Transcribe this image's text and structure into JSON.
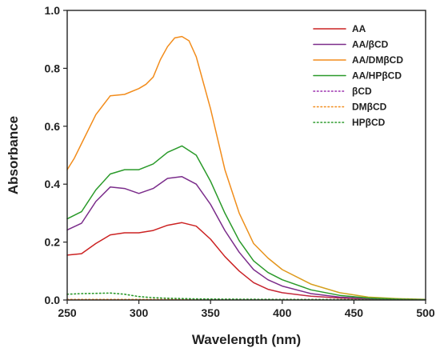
{
  "chart_data": {
    "type": "line",
    "title": "",
    "xlabel": "Wavelength (nm)",
    "ylabel": "Absorbance",
    "xlim": [
      250,
      500
    ],
    "ylim": [
      0.0,
      1.0
    ],
    "xticks": [
      250,
      300,
      350,
      400,
      450,
      500
    ],
    "yticks": [
      0.0,
      0.2,
      0.4,
      0.6,
      0.8,
      1.0
    ],
    "xtick_labels": [
      "250",
      "300",
      "350",
      "400",
      "450",
      "500"
    ],
    "ytick_labels": [
      "0.0",
      "0.2",
      "0.4",
      "0.6",
      "0.8",
      "1.0"
    ],
    "grid": false,
    "legend_position": "top-right",
    "series": [
      {
        "name": "AA",
        "color": "#cc2222",
        "color_end": "#b0306a",
        "dash": "solid",
        "x": [
          250,
          260,
          270,
          280,
          290,
          300,
          310,
          320,
          330,
          340,
          350,
          360,
          370,
          380,
          390,
          400,
          420,
          440,
          460,
          480,
          500
        ],
        "y": [
          0.155,
          0.16,
          0.195,
          0.225,
          0.232,
          0.232,
          0.24,
          0.258,
          0.267,
          0.255,
          0.21,
          0.15,
          0.1,
          0.06,
          0.037,
          0.025,
          0.013,
          0.007,
          0.004,
          0.002,
          0.001
        ]
      },
      {
        "name": "AA/βCD",
        "color": "#7b2d8b",
        "dash": "solid",
        "x": [
          250,
          260,
          270,
          280,
          290,
          300,
          310,
          320,
          330,
          340,
          350,
          360,
          370,
          380,
          390,
          400,
          420,
          440,
          460,
          480,
          500
        ],
        "y": [
          0.242,
          0.265,
          0.34,
          0.39,
          0.385,
          0.368,
          0.385,
          0.42,
          0.426,
          0.4,
          0.33,
          0.24,
          0.165,
          0.105,
          0.07,
          0.048,
          0.022,
          0.01,
          0.005,
          0.002,
          0.001
        ]
      },
      {
        "name": "AA/DMβCD",
        "color": "#f28c1b",
        "color_end": "#b6b520",
        "dash": "solid",
        "x": [
          250,
          255,
          260,
          270,
          280,
          290,
          300,
          305,
          310,
          315,
          320,
          325,
          330,
          335,
          340,
          350,
          360,
          370,
          380,
          390,
          400,
          420,
          440,
          460,
          480,
          500
        ],
        "y": [
          0.45,
          0.49,
          0.54,
          0.64,
          0.705,
          0.71,
          0.73,
          0.745,
          0.77,
          0.83,
          0.875,
          0.905,
          0.91,
          0.895,
          0.84,
          0.66,
          0.45,
          0.3,
          0.195,
          0.145,
          0.105,
          0.055,
          0.025,
          0.01,
          0.005,
          0.002
        ]
      },
      {
        "name": "AA/HPβCD",
        "color": "#2a9a2a",
        "dash": "solid",
        "x": [
          250,
          260,
          270,
          280,
          290,
          300,
          310,
          320,
          330,
          340,
          350,
          360,
          370,
          380,
          390,
          400,
          420,
          440,
          460,
          480,
          500
        ],
        "y": [
          0.28,
          0.305,
          0.38,
          0.435,
          0.45,
          0.45,
          0.47,
          0.51,
          0.532,
          0.5,
          0.41,
          0.3,
          0.205,
          0.135,
          0.095,
          0.07,
          0.035,
          0.016,
          0.007,
          0.003,
          0.001
        ]
      },
      {
        "name": "βCD",
        "color": "#9b2fae",
        "dash": "dotted",
        "x": [
          250,
          300,
          350,
          400,
          450,
          500
        ],
        "y": [
          0.002,
          0.002,
          0.001,
          0.001,
          0.001,
          0.001
        ]
      },
      {
        "name": "DMβCD",
        "color": "#f28c1b",
        "dash": "dotted",
        "x": [
          250,
          300,
          350,
          400,
          450,
          500
        ],
        "y": [
          0.002,
          0.002,
          0.001,
          0.001,
          0.001,
          0.001
        ]
      },
      {
        "name": "HPβCD",
        "color": "#2a9a2a",
        "dash": "dotted",
        "x": [
          250,
          260,
          270,
          280,
          290,
          300,
          310,
          320,
          340,
          360,
          400,
          450,
          500
        ],
        "y": [
          0.02,
          0.022,
          0.023,
          0.024,
          0.02,
          0.012,
          0.008,
          0.006,
          0.004,
          0.003,
          0.002,
          0.001,
          0.001
        ]
      }
    ]
  }
}
